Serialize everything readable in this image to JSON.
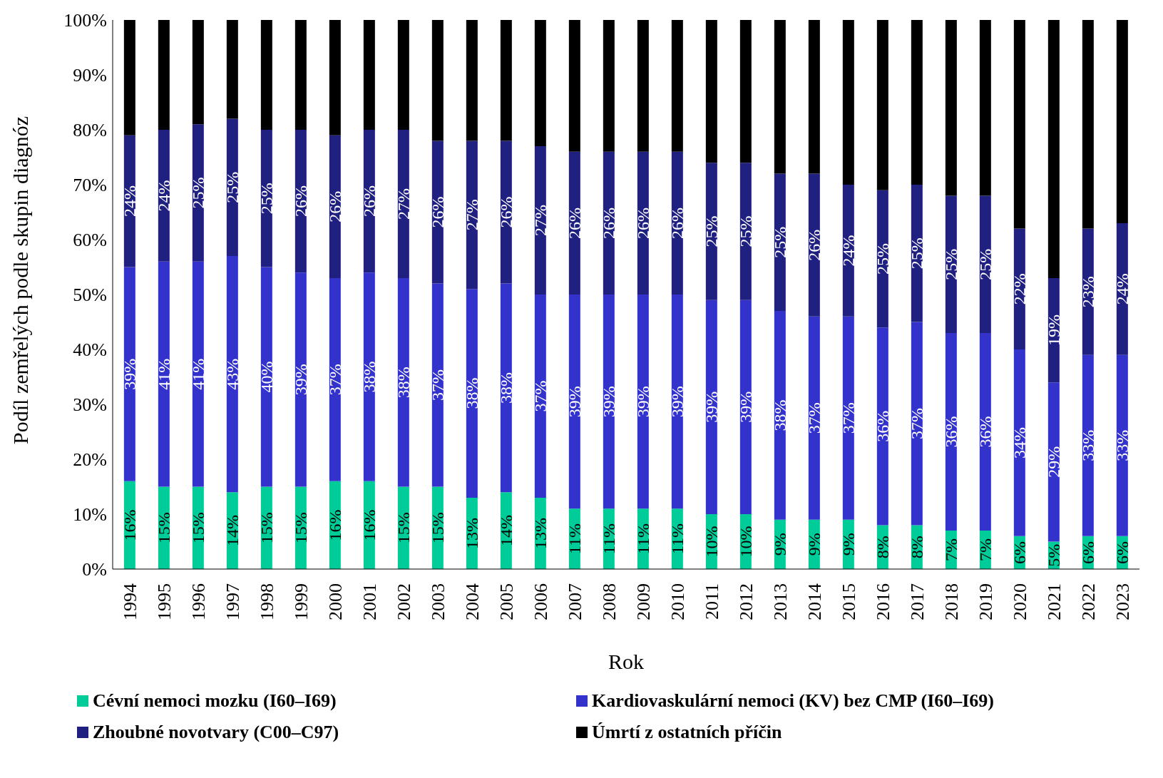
{
  "chart_data": {
    "type": "bar",
    "stacked": true,
    "xlabel": "Rok",
    "ylabel": "Podíl zemřelých podle skupin diagnóz",
    "categories": [
      "1994",
      "1995",
      "1996",
      "1997",
      "1998",
      "1999",
      "2000",
      "2001",
      "2002",
      "2003",
      "2004",
      "2005",
      "2006",
      "2007",
      "2008",
      "2009",
      "2010",
      "2011",
      "2012",
      "2013",
      "2014",
      "2015",
      "2016",
      "2017",
      "2018",
      "2019",
      "2020",
      "2021",
      "2022",
      "2023"
    ],
    "series": [
      {
        "name": "Cévní nemoci mozku (I60–I69)",
        "color": "#00cc99",
        "values": [
          16,
          15,
          15,
          14,
          15,
          15,
          16,
          16,
          15,
          15,
          13,
          14,
          13,
          11,
          11,
          11,
          11,
          10,
          10,
          9,
          9,
          9,
          8,
          8,
          7,
          7,
          6,
          5,
          6,
          6
        ],
        "value_labels": [
          "16%",
          "15%",
          "15%",
          "14%",
          "15%",
          "15%",
          "16%",
          "16%",
          "15%",
          "15%",
          "13%",
          "14%",
          "13%",
          "11%",
          "11%",
          "11%",
          "11%",
          "10%",
          "10%",
          "9%",
          "9%",
          "9%",
          "8%",
          "8%",
          "7%",
          "7%",
          "6%",
          "5%",
          "6%",
          "6%"
        ]
      },
      {
        "name": "Kardiovaskulární nemoci (KV) bez CMP (I60–I69)",
        "color": "#3333cc",
        "values": [
          39,
          41,
          41,
          43,
          40,
          39,
          37,
          38,
          38,
          37,
          38,
          38,
          37,
          39,
          39,
          39,
          39,
          39,
          39,
          38,
          37,
          37,
          36,
          37,
          36,
          36,
          34,
          29,
          33,
          33
        ],
        "value_labels": [
          "39%",
          "41%",
          "41%",
          "43%",
          "40%",
          "39%",
          "37%",
          "38%",
          "38%",
          "37%",
          "38%",
          "38%",
          "37%",
          "39%",
          "39%",
          "39%",
          "39%",
          "39%",
          "39%",
          "38%",
          "37%",
          "37%",
          "36%",
          "37%",
          "36%",
          "36%",
          "34%",
          "29%",
          "33%",
          "33%"
        ]
      },
      {
        "name": "Zhoubné novotvary (C00–C97)",
        "color": "#202080",
        "values": [
          24,
          24,
          25,
          25,
          25,
          26,
          26,
          26,
          27,
          26,
          27,
          26,
          27,
          26,
          26,
          26,
          26,
          25,
          25,
          25,
          26,
          24,
          25,
          25,
          25,
          25,
          22,
          19,
          23,
          24
        ],
        "value_labels": [
          "24%",
          "24%",
          "25%",
          "25%",
          "25%",
          "26%",
          "26%",
          "26%",
          "27%",
          "26%",
          "27%",
          "26%",
          "27%",
          "26%",
          "26%",
          "26%",
          "26%",
          "25%",
          "25%",
          "25%",
          "26%",
          "24%",
          "25%",
          "25%",
          "25%",
          "25%",
          "22%",
          "19%",
          "23%",
          "24%"
        ]
      },
      {
        "name": "Úmrtí z ostatních příčin",
        "color": "#000000",
        "values": [
          21,
          20,
          19,
          18,
          20,
          20,
          21,
          20,
          20,
          22,
          22,
          22,
          23,
          24,
          24,
          24,
          24,
          26,
          26,
          28,
          28,
          30,
          31,
          30,
          32,
          32,
          38,
          47,
          38,
          37
        ]
      }
    ],
    "ylim": [
      0,
      100
    ],
    "yticks": [
      {
        "value": 0,
        "label": "0%"
      },
      {
        "value": 10,
        "label": "10%"
      },
      {
        "value": 20,
        "label": "20%"
      },
      {
        "value": 30,
        "label": "30%"
      },
      {
        "value": 40,
        "label": "40%"
      },
      {
        "value": 50,
        "label": "50%"
      },
      {
        "value": 60,
        "label": "60%"
      },
      {
        "value": 70,
        "label": "70%"
      },
      {
        "value": 80,
        "label": "80%"
      },
      {
        "value": 90,
        "label": "90%"
      },
      {
        "value": 100,
        "label": "100%"
      }
    ],
    "grid": false,
    "legend": "bottom"
  }
}
